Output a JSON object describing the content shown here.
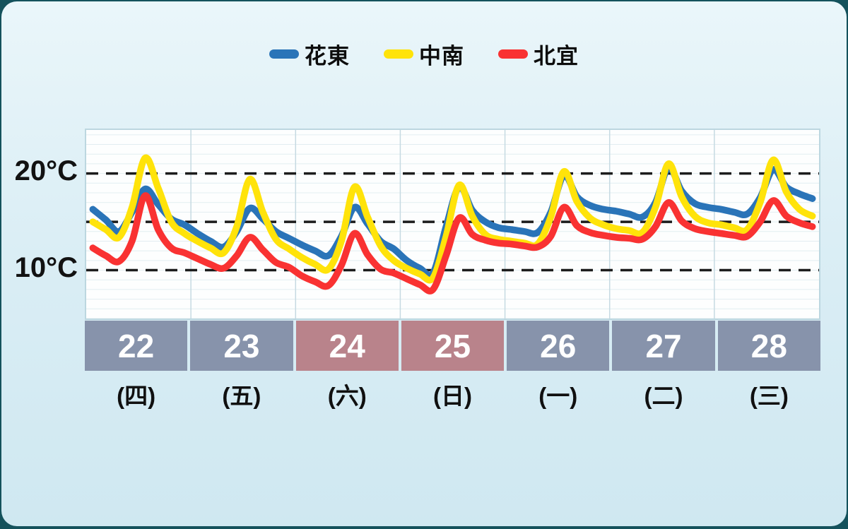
{
  "legend": [
    {
      "label": "花東",
      "color": "#2a74b8"
    },
    {
      "label": "中南",
      "color": "#ffe30a"
    },
    {
      "label": "北宜",
      "color": "#f93232"
    }
  ],
  "y_axis": {
    "labels": [
      {
        "text": "20°C",
        "value": 20
      },
      {
        "text": "10°C",
        "value": 10
      }
    ]
  },
  "days": [
    {
      "num": "22",
      "weekday": "(四)",
      "type": "weekday"
    },
    {
      "num": "23",
      "weekday": "(五)",
      "type": "weekday"
    },
    {
      "num": "24",
      "weekday": "(六)",
      "type": "weekend"
    },
    {
      "num": "25",
      "weekday": "(日)",
      "type": "weekend"
    },
    {
      "num": "26",
      "weekday": "(一)",
      "type": "weekday"
    },
    {
      "num": "27",
      "weekday": "(二)",
      "type": "weekday"
    },
    {
      "num": "28",
      "weekday": "(三)",
      "type": "weekday"
    }
  ],
  "colors": {
    "weekday_box": "#8793ab",
    "weekend_box": "#b9838b",
    "frame_teal": "#14525c",
    "panel_background": "#dbeef5",
    "plot_background": "#fdfefe",
    "plot_border": "#bcd7e0",
    "minor_gridline": "#e2edf1",
    "day_separator": "#c6dae2",
    "dashed_line": "#1c1c1c"
  },
  "chart_data": {
    "type": "line",
    "title": "",
    "xlabel": "",
    "ylabel": "°C",
    "categories": [
      "22(四)",
      "23(五)",
      "24(六)",
      "25(日)",
      "26(一)",
      "27(二)",
      "28(三)"
    ],
    "points_per_day": 8,
    "x_unit": "3-hour intervals over 7 days",
    "ylim": [
      5,
      24.5
    ],
    "dashed_gridlines_c": [
      20,
      15,
      10
    ],
    "minor_gridline_step_c": 1,
    "legend_position": "top-center",
    "series": [
      {
        "name": "花東",
        "color": "#2a74b8",
        "stroke_width": 9.5,
        "values": [
          16.3,
          15.2,
          14.0,
          16.0,
          18.4,
          16.8,
          15.3,
          14.7,
          13.8,
          13.0,
          12.4,
          14.0,
          16.4,
          15.3,
          14.0,
          13.3,
          12.6,
          12.0,
          11.5,
          13.5,
          16.5,
          14.8,
          13.0,
          12.2,
          11.0,
          10.2,
          9.7,
          14.5,
          18.6,
          16.2,
          15.0,
          14.4,
          14.2,
          14.0,
          13.9,
          16.0,
          19.8,
          17.6,
          16.7,
          16.3,
          16.1,
          15.8,
          15.5,
          17.0,
          20.6,
          18.2,
          16.9,
          16.5,
          16.3,
          16.0,
          15.8,
          17.5,
          20.4,
          18.6,
          17.9,
          17.4
        ]
      },
      {
        "name": "中南",
        "color": "#ffe30a",
        "stroke_width": 9.5,
        "values": [
          15.0,
          14.2,
          13.4,
          16.5,
          21.6,
          18.5,
          15.0,
          13.8,
          13.0,
          12.3,
          11.8,
          14.5,
          19.4,
          16.0,
          13.2,
          12.2,
          11.3,
          10.6,
          10.1,
          13.0,
          18.6,
          15.5,
          12.5,
          11.0,
          10.2,
          9.6,
          9.2,
          13.5,
          18.8,
          15.6,
          13.7,
          13.2,
          13.0,
          12.8,
          12.7,
          15.5,
          20.2,
          17.1,
          15.4,
          14.7,
          14.3,
          14.1,
          13.9,
          16.5,
          21.0,
          17.6,
          15.6,
          14.9,
          14.7,
          14.4,
          14.2,
          17.0,
          21.4,
          18.1,
          16.3,
          15.6
        ]
      },
      {
        "name": "北宜",
        "color": "#f93232",
        "stroke_width": 9.5,
        "values": [
          12.3,
          11.5,
          10.9,
          13.0,
          17.7,
          14.2,
          12.3,
          11.8,
          11.2,
          10.6,
          10.2,
          11.5,
          13.4,
          12.1,
          10.8,
          10.3,
          9.4,
          8.8,
          8.4,
          10.5,
          13.8,
          11.6,
          10.1,
          9.7,
          9.1,
          8.5,
          8.0,
          11.5,
          15.4,
          13.7,
          13.1,
          12.8,
          12.7,
          12.5,
          12.4,
          13.5,
          16.5,
          14.6,
          13.9,
          13.6,
          13.4,
          13.3,
          13.2,
          14.5,
          17.0,
          15.1,
          14.3,
          14.0,
          13.8,
          13.6,
          13.5,
          15.0,
          17.2,
          15.6,
          14.9,
          14.5
        ]
      }
    ]
  }
}
